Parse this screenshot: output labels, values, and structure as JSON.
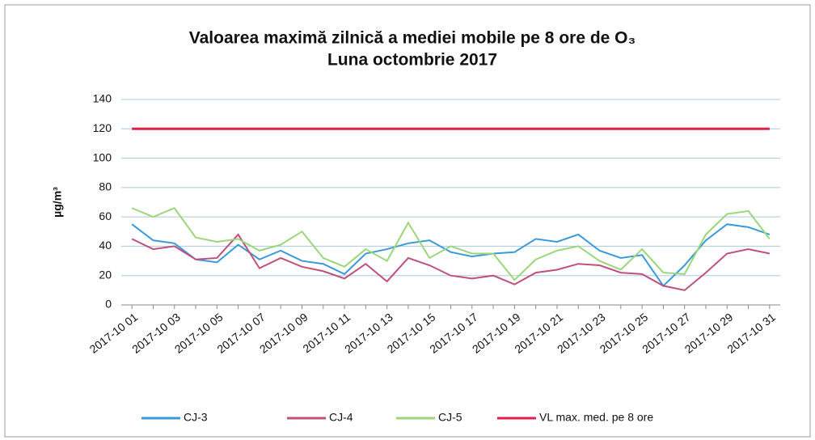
{
  "chart_data": {
    "type": "line",
    "title": "Valoarea maximă zilnică a mediei mobile pe 8 ore de O₃",
    "subtitle": "Luna octombrie 2017",
    "ylabel": "µg/m³",
    "categories": [
      "2017-10 01",
      null,
      "2017-10 03",
      null,
      "2017-10 05",
      null,
      "2017-10 07",
      null,
      "2017-10 09",
      null,
      "2017-10 11",
      null,
      "2017-10 13",
      null,
      "2017-10 15",
      null,
      "2017-10 17",
      null,
      "2017-10 19",
      null,
      "2017-10 21",
      null,
      "2017-10 23",
      null,
      "2017-10 25",
      null,
      "2017-10 27",
      null,
      "2017-10 29",
      null,
      "2017-10 31"
    ],
    "series": [
      {
        "name": "CJ-3",
        "color": "#3a9ad9",
        "values": [
          55,
          44,
          42,
          31,
          29,
          41,
          31,
          37,
          30,
          28,
          21,
          35,
          38,
          42,
          44,
          36,
          33,
          35,
          36,
          45,
          43,
          48,
          37,
          32,
          34,
          13,
          27,
          44,
          55,
          53,
          48
        ]
      },
      {
        "name": "CJ-4",
        "color": "#c0507a",
        "values": [
          45,
          38,
          40,
          31,
          32,
          48,
          25,
          32,
          26,
          23,
          18,
          28,
          16,
          32,
          27,
          20,
          18,
          20,
          14,
          22,
          24,
          28,
          27,
          22,
          21,
          13,
          10,
          22,
          35,
          38,
          35
        ]
      },
      {
        "name": "CJ-5",
        "color": "#9bd67a",
        "values": [
          66,
          60,
          66,
          46,
          43,
          45,
          37,
          41,
          50,
          32,
          26,
          38,
          30,
          56,
          32,
          40,
          35,
          35,
          17,
          31,
          37,
          40,
          30,
          24,
          38,
          22,
          21,
          48,
          62,
          64,
          45
        ]
      },
      {
        "name": "VL max. med. pe 8 ore",
        "color": "#e0204a",
        "values": [
          120,
          120,
          120,
          120,
          120,
          120,
          120,
          120,
          120,
          120,
          120,
          120,
          120,
          120,
          120,
          120,
          120,
          120,
          120,
          120,
          120,
          120,
          120,
          120,
          120,
          120,
          120,
          120,
          120,
          120,
          120
        ]
      }
    ],
    "ylim": [
      0,
      140
    ],
    "yticks": [
      0,
      20,
      40,
      60,
      80,
      100,
      120,
      140
    ],
    "grid": true,
    "legend": "bottom"
  }
}
